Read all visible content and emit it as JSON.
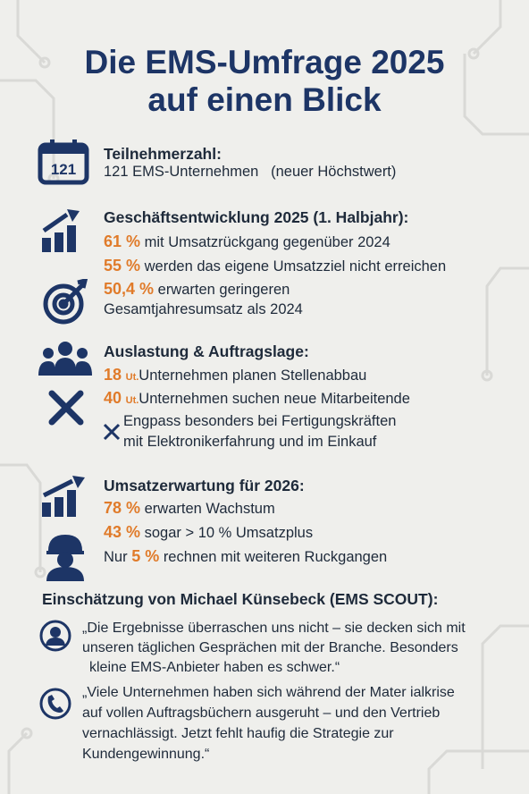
{
  "title": {
    "line1": "Die EMS-Umfrage 2025",
    "line2": "auf einen Blick"
  },
  "sections": [
    {
      "heading": "Teilnehmerzahl:",
      "icon_text": "121",
      "lines": [
        {
          "text": "121 EMS-Unternehmen   (neuer Höchstwert)"
        }
      ]
    },
    {
      "heading": "Geschäftsentwicklung 2025 (1. Halbjahr):",
      "lines": [
        {
          "value": "61 %",
          "text": "mit Umsatzrückgang gegenüber 2024"
        },
        {
          "value": "55 %",
          "text": "werden das eigene Umsatzziel nicht erreichen"
        },
        {
          "value": "50,4 %",
          "text": "erwarten geringeren"
        },
        {
          "text": "Gesamtjahresumsatz als 2024"
        }
      ]
    },
    {
      "heading": "Auslastung & Auftragslage:",
      "lines": [
        {
          "value": "18",
          "unit": "Ut.",
          "text": "Unternehmen planen Stellenabbau"
        },
        {
          "value": "40",
          "unit": "Ut.",
          "text": "Unternehmen suchen neue Mitarbeitende"
        },
        {
          "text": "Engpass besonders bei Fertigungskräften"
        },
        {
          "text": "mit Elektronikerfahrung und im Einkauf"
        }
      ]
    },
    {
      "heading": "Umsatzerwartung für 2026:",
      "lines": [
        {
          "value": "78 %",
          "text": "erwarten Wachstum"
        },
        {
          "value": "43 %",
          "text": "sogar > 10 % Umsatzplus"
        },
        {
          "prefix": "Nur",
          "value": "5 %",
          "text": "rechnen mit weiteren Ruckgangen"
        }
      ]
    }
  ],
  "assessment": {
    "heading": "Einschätzung von Michael Künsebeck (EMS SCOUT):",
    "quotes": [
      [
        "„Die Ergebnisse überraschen uns nicht – sie decken sich mit",
        "unseren täglichen Gesprächen mit der Branche. Besonders",
        "kleine EMS-Anbieter haben es schwer.“"
      ],
      [
        "„Viele Unternehmen haben sich während der Mater ialkrise",
        "auf vollen Auftragsbüchern ausgeruht – und den Vertrieb",
        "vernachlässigt. Jetzt fehlt haufig die Strategie zur",
        "Kundengewinnung.“"
      ]
    ]
  }
}
